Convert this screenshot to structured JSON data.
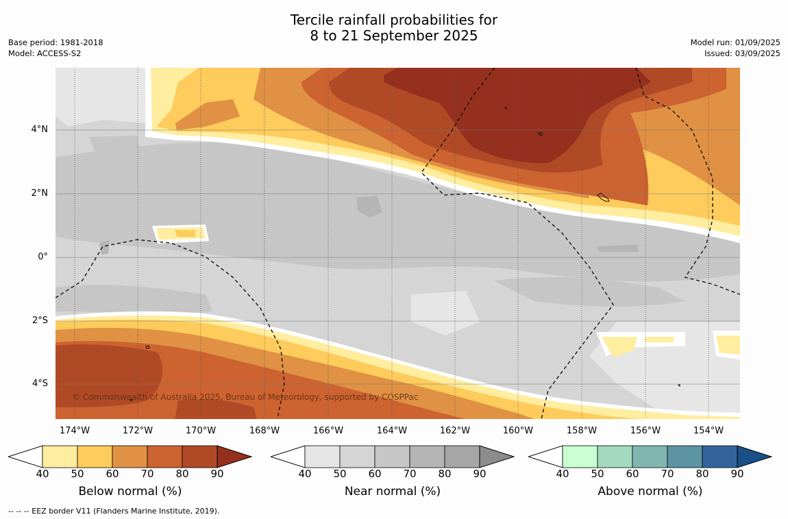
{
  "title": {
    "line1": "Tercile rainfall probabilities for",
    "line2": "8 to 21 September 2025"
  },
  "meta_left": {
    "base_period": "Base period: 1981-2018",
    "model": "Model: ACCESS-S2"
  },
  "meta_right": {
    "model_run": "Model run: 01/09/2025",
    "issued": "Issued: 03/09/2025"
  },
  "map": {
    "lat_labels": [
      "4°N",
      "2°N",
      "0°",
      "2°S",
      "4°S"
    ],
    "lon_labels": [
      "174°W",
      "172°W",
      "170°W",
      "168°W",
      "166°W",
      "164°W",
      "162°W",
      "160°W",
      "158°W",
      "156°W",
      "154°W"
    ],
    "copyright": "© Commonwealth of Australia 2025, Bureau of Meteorology, supported by COSPPac",
    "colors": {
      "below": [
        "#ffeda0",
        "#fecc5c",
        "#e09143",
        "#cc6331",
        "#b04a26",
        "#96301e"
      ],
      "near": [
        "#e6e6e6",
        "#d5d5d5",
        "#c6c6c6",
        "#b5b5b5",
        "#a6a6a6",
        "#8c8c8c"
      ],
      "above": [
        "#c9ffd1",
        "#a3d9be",
        "#80b5b0",
        "#5c94a3",
        "#33659c",
        "#1a4f87"
      ]
    }
  },
  "colorbars": [
    {
      "title": "Below normal (%)",
      "ticks": [
        "40",
        "50",
        "60",
        "70",
        "80",
        "90"
      ]
    },
    {
      "title": "Near normal (%)",
      "ticks": [
        "40",
        "50",
        "60",
        "70",
        "80",
        "90"
      ]
    },
    {
      "title": "Above normal (%)",
      "ticks": [
        "40",
        "50",
        "60",
        "70",
        "80",
        "90"
      ]
    }
  ],
  "footnote": "--  --  -- EEZ border V11 (Flanders Marine Institute, 2019)."
}
